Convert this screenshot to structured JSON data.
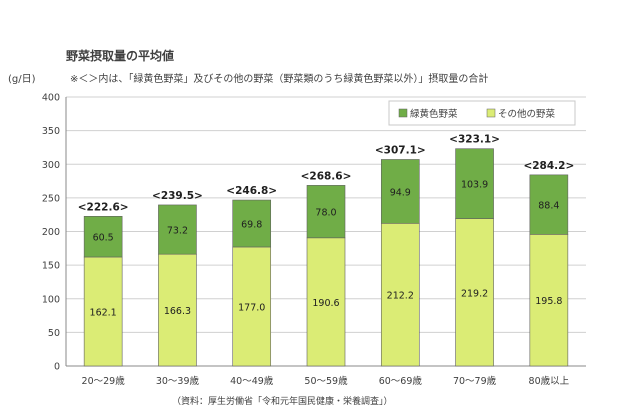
{
  "header": {
    "title": "野菜摂取量の平均値",
    "unit": "(g/日)",
    "note": "※＜＞内は、「緑黄色野菜」及びその他の野菜（野菜類のうち緑黄色野菜以外）」摂取量の合計"
  },
  "footer": {
    "source": "（資料：厚生労働省「令和元年国民健康・栄養調査」）"
  },
  "colors": {
    "green": "#70ad47",
    "yellow": "#dbec75",
    "grid": "#d0d0d0",
    "axis": "#888888"
  },
  "chart_data": {
    "type": "bar",
    "stacked": true,
    "categories": [
      "20～29歳",
      "30～39歳",
      "40～49歳",
      "50～59歳",
      "60～69歳",
      "70～79歳",
      "80歳以上"
    ],
    "series": [
      {
        "name": "その他の野菜",
        "values": [
          162.1,
          166.3,
          177.0,
          190.6,
          212.2,
          219.2,
          195.8
        ]
      },
      {
        "name": "緑黄色野菜",
        "values": [
          60.5,
          73.2,
          69.8,
          78.0,
          94.9,
          103.9,
          88.4
        ]
      }
    ],
    "totals": [
      222.6,
      239.5,
      246.8,
      268.6,
      307.1,
      323.1,
      284.2
    ],
    "ylabel": "(g/日)",
    "ylim": [
      0,
      400
    ],
    "yticks": [
      0,
      50,
      100,
      150,
      200,
      250,
      300,
      350,
      400
    ],
    "grid": true,
    "legend": "top-right"
  }
}
